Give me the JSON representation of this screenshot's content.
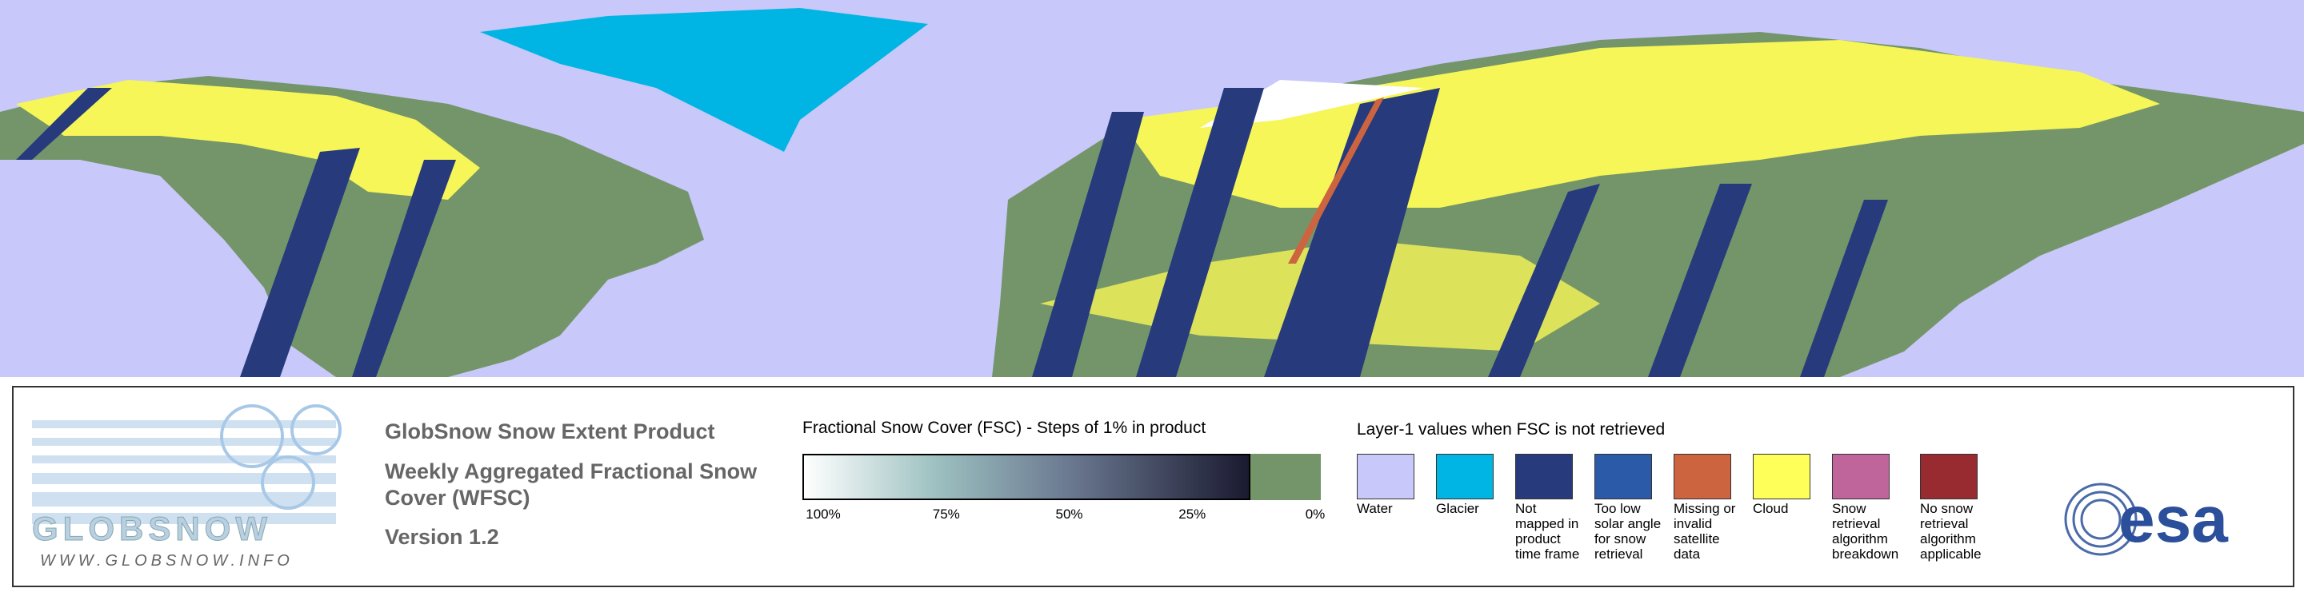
{
  "logo": {
    "name": "GLOBSNOW",
    "url": "WWW.GLOBSNOW.INFO"
  },
  "titles": [
    "GlobSnow Snow Extent Product",
    "Weekly Aggregated Fractional Snow Cover (WFSC)",
    "Version 1.2"
  ],
  "colorbar": {
    "title": "Fractional Snow Cover (FSC) - Steps of 1% in product",
    "ticks": [
      {
        "value": 100,
        "label": "100%"
      },
      {
        "value": 75,
        "label": "75%"
      },
      {
        "value": 50,
        "label": "50%"
      },
      {
        "value": 25,
        "label": "25%"
      },
      {
        "value": 0,
        "label": "0%"
      }
    ]
  },
  "layer1": {
    "title": "Layer-1 values when FSC is not retrieved",
    "items": [
      {
        "label": "Water",
        "color": "#c8c8fa"
      },
      {
        "label": "Glacier",
        "color": "#00b4e4"
      },
      {
        "label": "Not mapped in product time frame",
        "color": "#273a7c"
      },
      {
        "label": "Too low solar angle for snow retrieval",
        "color": "#2a5aa8"
      },
      {
        "label": "Missing or invalid satellite data",
        "color": "#cd6440"
      },
      {
        "label": "Cloud",
        "color": "#ffff5a"
      },
      {
        "label": "Snow retrieval algorithm breakdown",
        "color": "#c0649c"
      },
      {
        "label": "No snow retrieval algorithm applicable",
        "color": "#982b30"
      }
    ]
  },
  "agency": "esa"
}
